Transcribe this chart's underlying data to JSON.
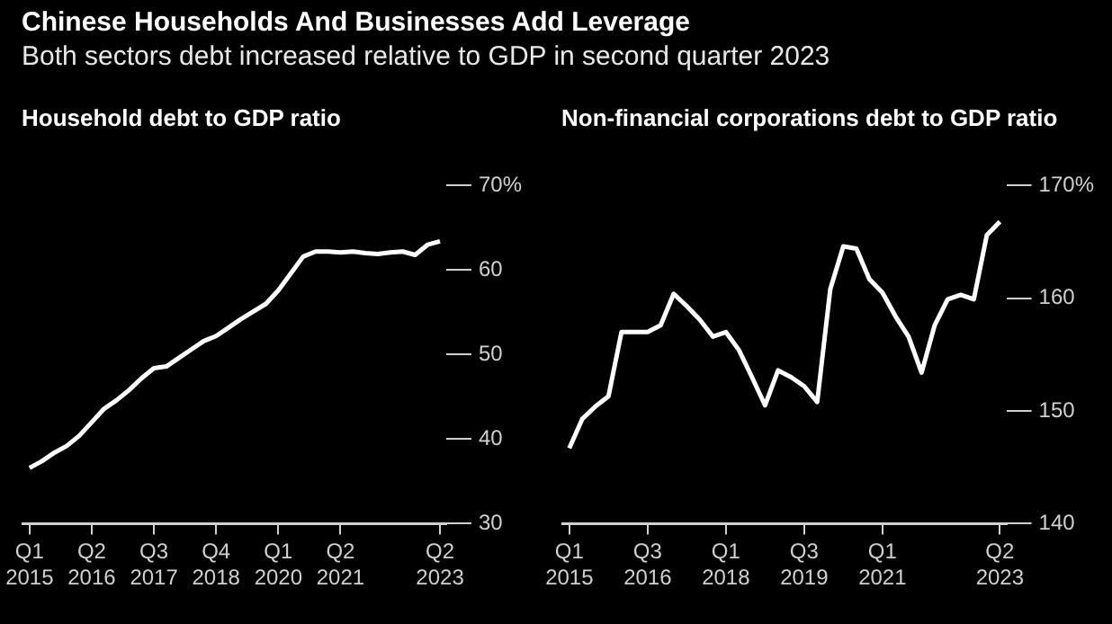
{
  "chart_data": [
    {
      "type": "line",
      "title": "Chinese Households And Businesses Add Leverage",
      "subtitle": "Both sectors debt increased relative to GDP in second quarter 2023",
      "ylabel": "Household debt to GDP ratio",
      "marker": "none",
      "categories": [
        "Q1 2015",
        null,
        null,
        null,
        null,
        "Q2 2016",
        null,
        null,
        null,
        null,
        "Q3 2017",
        null,
        null,
        null,
        null,
        "Q4 2018",
        null,
        null,
        null,
        null,
        "Q1 2020",
        null,
        null,
        null,
        null,
        "Q2 2021",
        null,
        null,
        null,
        null,
        null,
        null,
        null,
        "Q2 2023"
      ],
      "values": [
        36.6,
        37.4,
        38.4,
        39.2,
        40.4,
        42,
        43.6,
        44.6,
        45.8,
        47.2,
        48.4,
        48.6,
        49.6,
        50.6,
        51.6,
        52.2,
        53.2,
        54.2,
        55.1,
        56,
        57.6,
        59.6,
        61.6,
        62.2,
        62.2,
        62.1,
        62.2,
        62,
        61.9,
        62.1,
        62.2,
        61.8,
        63,
        63.4
      ],
      "color": "#ffffff",
      "ylim": [
        30,
        70
      ],
      "yticks": [
        30,
        40,
        50,
        60,
        {
          "value": 70,
          "label": "70%"
        }
      ]
    },
    {
      "type": "line",
      "ylabel": "Non-financial corporations debt to GDP ratio",
      "marker": "none",
      "categories": [
        "Q1 2015",
        null,
        null,
        null,
        null,
        null,
        "Q3 2016",
        null,
        null,
        null,
        null,
        null,
        "Q1 2018",
        null,
        null,
        null,
        null,
        null,
        "Q3 2019",
        null,
        null,
        null,
        null,
        null,
        "Q1 2021",
        null,
        null,
        null,
        null,
        null,
        null,
        null,
        null,
        "Q2 2023"
      ],
      "values": [
        146.7,
        149.3,
        150.4,
        151.3,
        157,
        157,
        157,
        157.6,
        160.4,
        159.3,
        158.1,
        156.6,
        157,
        155.4,
        153,
        150.5,
        153.6,
        153,
        152.2,
        150.8,
        160.8,
        164.6,
        164.4,
        161.7,
        160.5,
        158.4,
        156.6,
        153.4,
        157.6,
        159.9,
        160.3,
        159.9,
        165.6,
        166.8
      ],
      "color": "#ffffff",
      "ylim": [
        140,
        170
      ],
      "yticks": [
        140,
        150,
        160,
        {
          "value": 170,
          "label": "170%"
        }
      ]
    }
  ]
}
